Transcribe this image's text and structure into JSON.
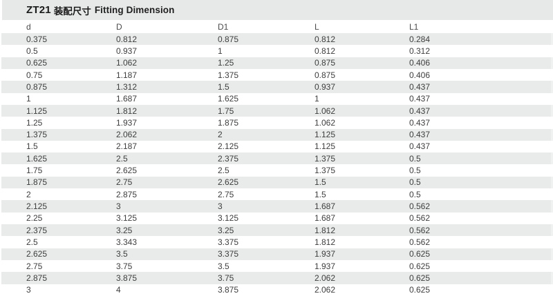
{
  "title": {
    "model": "ZT21",
    "cn": "装配尺寸",
    "en": "Fitting Dimension"
  },
  "colors": {
    "title_band": "#e7e8e8",
    "row_stripe": "#e9eaea",
    "text": "#3d3d3d",
    "title_text": "#1a1a1a"
  },
  "table": {
    "columns": [
      "d",
      "D",
      "D1",
      "L",
      "L1"
    ],
    "rows": [
      [
        "0.375",
        "0.812",
        "0.875",
        "0.812",
        "0.284"
      ],
      [
        "0.5",
        "0.937",
        "1",
        "0.812",
        "0.312"
      ],
      [
        "0.625",
        "1.062",
        "1.25",
        "0.875",
        "0.406"
      ],
      [
        "0.75",
        "1.187",
        "1.375",
        "0.875",
        "0.406"
      ],
      [
        "0.875",
        "1.312",
        "1.5",
        "0.937",
        "0.437"
      ],
      [
        "1",
        "1.687",
        "1.625",
        "1",
        "0.437"
      ],
      [
        "1.125",
        "1.812",
        "1.75",
        "1.062",
        "0.437"
      ],
      [
        "1.25",
        "1.937",
        "1.875",
        "1.062",
        "0.437"
      ],
      [
        "1.375",
        "2.062",
        "2",
        "1.125",
        "0.437"
      ],
      [
        "1.5",
        "2.187",
        "2.125",
        "1.125",
        "0.437"
      ],
      [
        "1.625",
        "2.5",
        "2.375",
        "1.375",
        "0.5"
      ],
      [
        "1.75",
        "2.625",
        "2.5",
        "1.375",
        "0.5"
      ],
      [
        "1.875",
        "2.75",
        "2.625",
        "1.5",
        "0.5"
      ],
      [
        "2",
        "2.875",
        "2.75",
        "1.5",
        "0.5"
      ],
      [
        "2.125",
        "3",
        "3",
        "1.687",
        "0.562"
      ],
      [
        "2.25",
        "3.125",
        "3.125",
        "1.687",
        "0.562"
      ],
      [
        "2.375",
        "3.25",
        "3.25",
        "1.812",
        "0.562"
      ],
      [
        "2.5",
        "3.343",
        "3.375",
        "1.812",
        "0.562"
      ],
      [
        "2.625",
        "3.5",
        "3.375",
        "1.937",
        "0.625"
      ],
      [
        "2.75",
        "3.75",
        "3.5",
        "1.937",
        "0.625"
      ],
      [
        "2.875",
        "3.875",
        "3.75",
        "2.062",
        "0.625"
      ],
      [
        "3",
        "4",
        "3.875",
        "2.062",
        "0.625"
      ]
    ]
  }
}
